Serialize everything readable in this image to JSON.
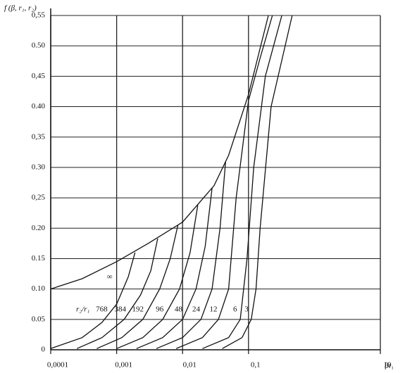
{
  "chart_data": {
    "type": "line",
    "ylabel": "f (β, r₁, r₂)",
    "xlabel": "βr₁",
    "legend_title": "r₂/r₁",
    "xscale": "log",
    "grid": true,
    "color": "#111111",
    "xlim": [
      0.0001,
      10
    ],
    "ylim": [
      0,
      0.55
    ],
    "xticks": [
      {
        "value": 0.0001,
        "label": "0,0001"
      },
      {
        "value": 0.001,
        "label": "0,001"
      },
      {
        "value": 0.01,
        "label": "0,01"
      },
      {
        "value": 0.1,
        "label": "0,1"
      },
      10
    ],
    "yticks": [
      0,
      {
        "value": 0.05,
        "label": "0.05"
      },
      {
        "value": 0.1,
        "label": "0.10"
      },
      {
        "value": 0.15,
        "label": "0.15"
      },
      {
        "value": 0.2,
        "label": "0.20"
      },
      {
        "value": 0.25,
        "label": "0,25"
      },
      {
        "value": 0.3,
        "label": "0.30"
      },
      {
        "value": 0.35,
        "label": "0,35"
      },
      {
        "value": 0.4,
        "label": "0.40"
      },
      {
        "value": 0.45,
        "label": "0,45"
      },
      {
        "value": 0.5,
        "label": "0.50"
      },
      {
        "value": 0.55,
        "label": "0,55"
      }
    ],
    "series": [
      {
        "name": "∞",
        "x": [
          0.0001,
          0.0003,
          0.001,
          0.003,
          0.01,
          0.03,
          0.05,
          0.1,
          0.2
        ],
        "values": [
          0.1,
          0.117,
          0.145,
          0.175,
          0.21,
          0.27,
          0.32,
          0.42,
          0.55
        ]
      },
      {
        "name": "768",
        "x": [
          0.0001,
          0.0003,
          0.0006,
          0.001,
          0.0015,
          0.0019
        ],
        "values": [
          0.002,
          0.02,
          0.045,
          0.075,
          0.12,
          0.16
        ]
      },
      {
        "name": "384",
        "x": [
          0.00025,
          0.0006,
          0.0013,
          0.0023,
          0.0033,
          0.0042
        ],
        "values": [
          0.002,
          0.02,
          0.05,
          0.09,
          0.13,
          0.183
        ]
      },
      {
        "name": "192",
        "x": [
          0.0005,
          0.0012,
          0.0025,
          0.0045,
          0.0065,
          0.0085
        ],
        "values": [
          0.002,
          0.02,
          0.05,
          0.1,
          0.15,
          0.205
        ]
      },
      {
        "name": "96",
        "x": [
          0.001,
          0.0025,
          0.005,
          0.009,
          0.013,
          0.017
        ],
        "values": [
          0.002,
          0.02,
          0.05,
          0.1,
          0.16,
          0.238
        ]
      },
      {
        "name": "48",
        "x": [
          0.002,
          0.005,
          0.01,
          0.016,
          0.022,
          0.028
        ],
        "values": [
          0.002,
          0.02,
          0.05,
          0.1,
          0.17,
          0.266
        ]
      },
      {
        "name": "24",
        "x": [
          0.004,
          0.01,
          0.019,
          0.028,
          0.037,
          0.045
        ],
        "values": [
          0.002,
          0.02,
          0.05,
          0.1,
          0.2,
          0.31
        ]
      },
      {
        "name": "12",
        "x": [
          0.008,
          0.02,
          0.035,
          0.05,
          0.065,
          0.1,
          0.15,
          0.23
        ],
        "values": [
          0.002,
          0.02,
          0.05,
          0.1,
          0.25,
          0.41,
          0.48,
          0.55
        ]
      },
      {
        "name": "6",
        "x": [
          0.02,
          0.05,
          0.075,
          0.095,
          0.12,
          0.18,
          0.32
        ],
        "values": [
          0.002,
          0.02,
          0.05,
          0.15,
          0.3,
          0.45,
          0.55
        ]
      },
      {
        "name": "3",
        "x": [
          0.04,
          0.08,
          0.11,
          0.13,
          0.15,
          0.22,
          0.46
        ],
        "values": [
          0.002,
          0.02,
          0.05,
          0.1,
          0.2,
          0.4,
          0.55
        ]
      }
    ]
  }
}
